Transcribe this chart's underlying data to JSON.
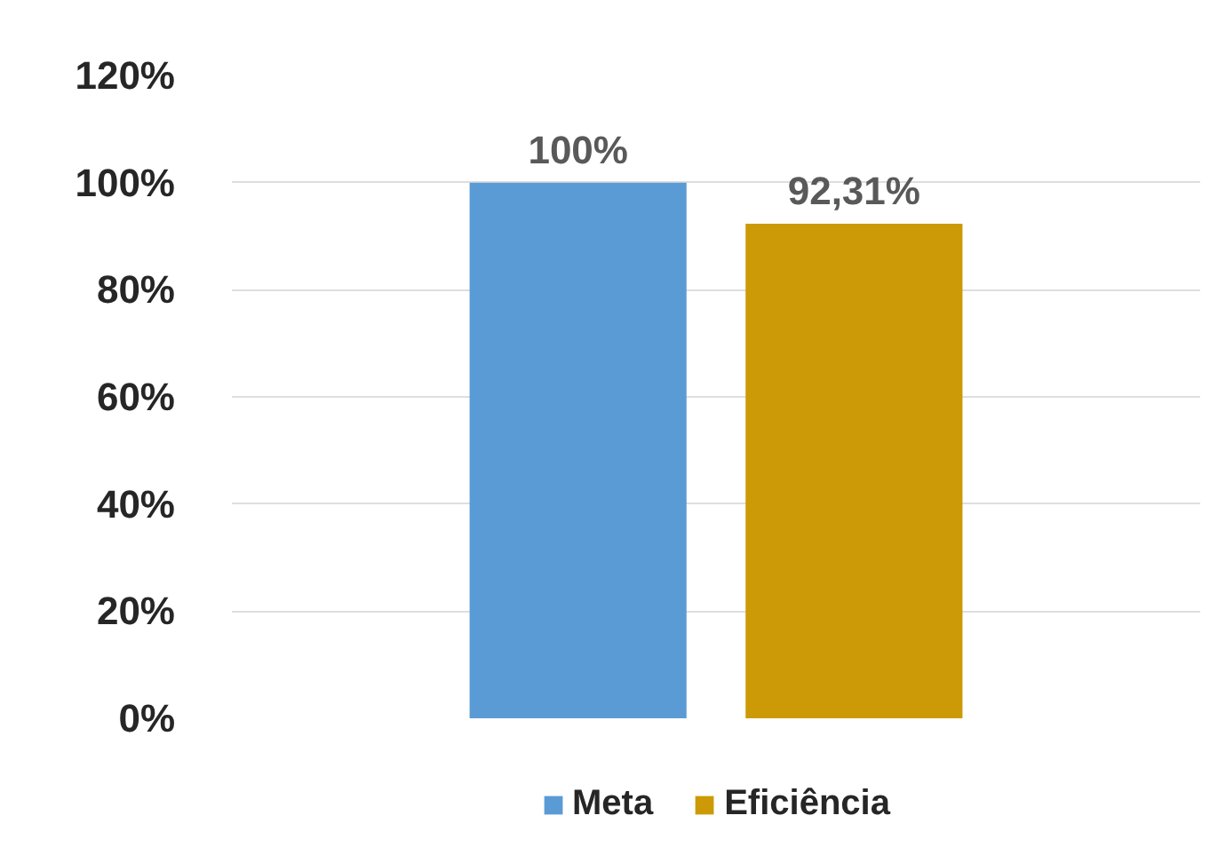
{
  "chart_data": {
    "type": "bar",
    "categories": [
      null
    ],
    "series": [
      {
        "name": "Meta",
        "color": "#5b9bd5",
        "values": [
          100
        ],
        "value_labels": [
          "100%"
        ]
      },
      {
        "name": "Eficiência",
        "color": "#cc9a06",
        "values": [
          92.31
        ],
        "value_labels": [
          "92,31%"
        ]
      }
    ],
    "ylim": [
      0,
      120
    ],
    "yticks": [
      {
        "value": 0,
        "label": "0%"
      },
      {
        "value": 20,
        "label": "20%"
      },
      {
        "value": 40,
        "label": "40%"
      },
      {
        "value": 60,
        "label": "60%"
      },
      {
        "value": 80,
        "label": "80%"
      },
      {
        "value": 100,
        "label": "100%"
      },
      {
        "value": 120,
        "label": "120%"
      }
    ],
    "grid": "y",
    "legend": "bottom",
    "tick_labels": "y"
  }
}
